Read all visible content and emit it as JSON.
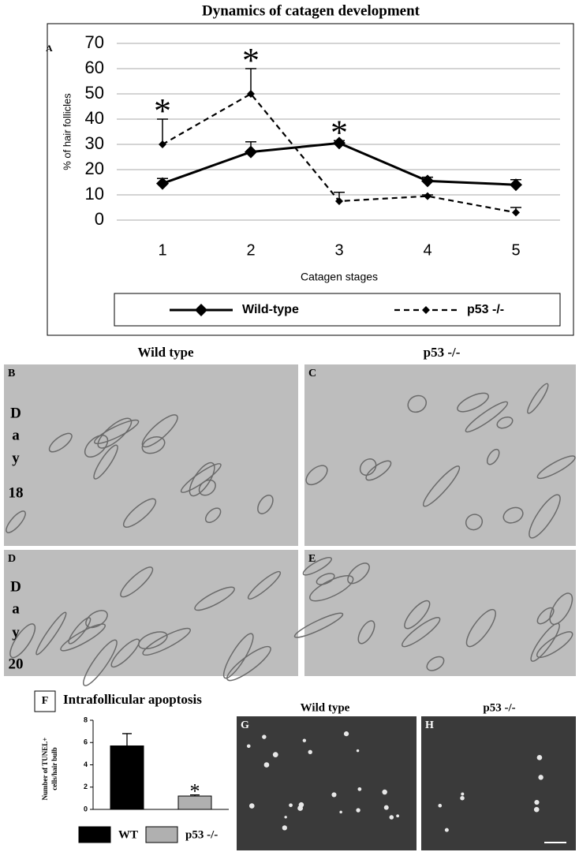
{
  "chart_data": [
    {
      "type": "line",
      "title": "Dynamics of catagen development",
      "panel_label": "A",
      "x_label": "Catagen stages",
      "y_label": "% of hair follicles",
      "categories": [
        "1",
        "2",
        "3",
        "4",
        "5"
      ],
      "ylim": [
        0,
        70
      ],
      "yticks": [
        0,
        10,
        20,
        30,
        40,
        50,
        60,
        70
      ],
      "grid": true,
      "significance": [
        "*",
        "*",
        "*",
        null,
        null
      ],
      "series": [
        {
          "name": "Wild-type",
          "color": "#000000",
          "line_style": "solid",
          "values": [
            14.5,
            27,
            30.5,
            15.5,
            14
          ],
          "errors": [
            2,
            4,
            1,
            1.5,
            2
          ]
        },
        {
          "name": "p53 -/-",
          "color": "#000000",
          "line_style": "dashed",
          "values": [
            30,
            50,
            7.5,
            9.5,
            3
          ],
          "errors": [
            10,
            10,
            3.5,
            0.5,
            2
          ]
        }
      ]
    },
    {
      "type": "bar",
      "title": "Intrafollicular apoptosis",
      "panel_label": "F",
      "y_label": [
        "Number of TUNEL+",
        "cells/hair bulb"
      ],
      "categories": [
        null
      ],
      "ylim": [
        0,
        8
      ],
      "yticks": [
        0,
        2,
        4,
        6,
        8
      ],
      "series": [
        {
          "name": "WT",
          "color": "#000000",
          "values": [
            5.7
          ],
          "errors": [
            1.1
          ],
          "significance": null
        },
        {
          "name": "p53 -/-",
          "color": "#b0b0b0",
          "values": [
            1.2
          ],
          "errors": [
            0.1
          ],
          "significance": "*"
        }
      ]
    }
  ],
  "micrographs": {
    "headers": [
      "Wild type",
      "p53 -/-"
    ],
    "row_labels": [
      [
        "D",
        "a",
        "y",
        "18"
      ],
      [
        "D",
        "a",
        "y",
        "20"
      ]
    ],
    "panels": [
      "B",
      "C",
      "D",
      "E"
    ]
  },
  "tunel": {
    "headers": [
      "Wild type",
      "p53 -/-"
    ],
    "panels": [
      "G",
      "H"
    ]
  }
}
